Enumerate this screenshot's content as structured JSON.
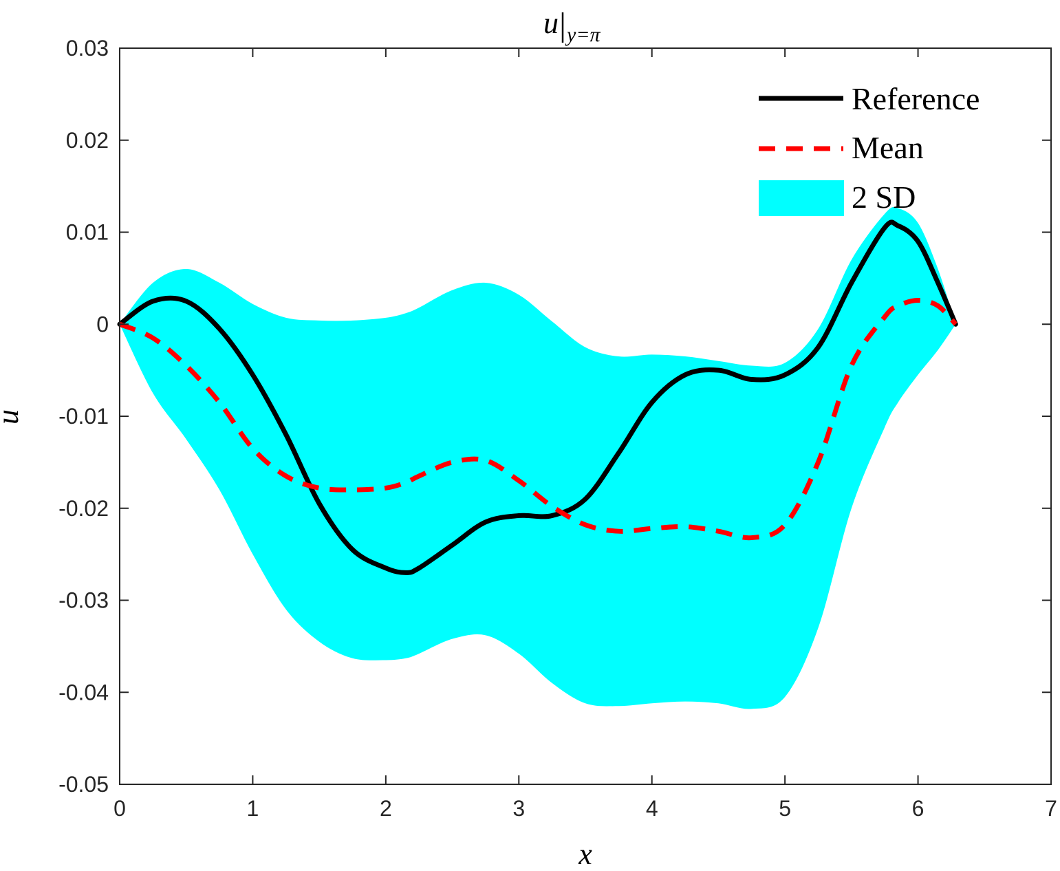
{
  "chart_data": {
    "type": "line",
    "title": "u|y=π",
    "title_main": "u",
    "title_sub": "y=π",
    "xlabel": "x",
    "ylabel": "u",
    "xlim": [
      0,
      7
    ],
    "ylim": [
      -0.05,
      0.03
    ],
    "x_ticks": [
      0,
      1,
      2,
      3,
      4,
      5,
      6,
      7
    ],
    "x_tick_labels": [
      "0",
      "1",
      "2",
      "3",
      "4",
      "5",
      "6",
      "7"
    ],
    "y_ticks": [
      0.03,
      0.02,
      0.01,
      0,
      -0.01,
      -0.02,
      -0.03,
      -0.04,
      -0.05
    ],
    "y_tick_labels": [
      "0.03",
      "0.02",
      "0.01",
      "0",
      "-0.01",
      "-0.02",
      "-0.03",
      "-0.04",
      "-0.05"
    ],
    "grid": false,
    "legend_position": "top-right",
    "x": [
      0,
      0.25,
      0.5,
      0.75,
      1.0,
      1.25,
      1.5,
      1.75,
      2.0,
      2.15,
      2.25,
      2.5,
      2.75,
      3.0,
      3.25,
      3.5,
      3.75,
      4.0,
      4.25,
      4.5,
      4.75,
      5.0,
      5.25,
      5.5,
      5.75,
      5.85,
      6.0,
      6.15,
      6.283
    ],
    "series": [
      {
        "name": "Reference",
        "style": "solid",
        "color": "#000000",
        "values": [
          0,
          0.0025,
          0.0025,
          -0.0005,
          -0.0055,
          -0.012,
          -0.0195,
          -0.0245,
          -0.0265,
          -0.027,
          -0.0265,
          -0.024,
          -0.0215,
          -0.0208,
          -0.0208,
          -0.019,
          -0.014,
          -0.0085,
          -0.0055,
          -0.005,
          -0.006,
          -0.0055,
          -0.0025,
          0.0045,
          0.0105,
          0.0107,
          0.009,
          0.0045,
          0
        ]
      },
      {
        "name": "Mean",
        "style": "dashed",
        "color": "#ff0000",
        "values": [
          0,
          -0.0015,
          -0.0045,
          -0.0085,
          -0.0135,
          -0.0165,
          -0.0178,
          -0.018,
          -0.0178,
          -0.0172,
          -0.0165,
          -0.015,
          -0.0148,
          -0.017,
          -0.0198,
          -0.0218,
          -0.0225,
          -0.0222,
          -0.022,
          -0.0225,
          -0.0232,
          -0.0218,
          -0.015,
          -0.0045,
          0.0008,
          0.002,
          0.0026,
          0.002,
          0
        ]
      }
    ],
    "band": {
      "name": "2 SD",
      "color": "#00ffff",
      "upper": [
        0,
        0.0045,
        0.006,
        0.0045,
        0.0022,
        0.0007,
        0.0004,
        0.0004,
        0.0007,
        0.0012,
        0.0018,
        0.0037,
        0.0045,
        0.0032,
        0.0003,
        -0.0025,
        -0.0035,
        -0.0033,
        -0.0035,
        -0.004,
        -0.0045,
        -0.0042,
        -0.0005,
        0.007,
        0.012,
        0.0126,
        0.011,
        0.006,
        0
      ],
      "lower": [
        0,
        -0.0075,
        -0.0125,
        -0.018,
        -0.025,
        -0.031,
        -0.0345,
        -0.0363,
        -0.0365,
        -0.0363,
        -0.0358,
        -0.0342,
        -0.0338,
        -0.0358,
        -0.039,
        -0.0412,
        -0.0415,
        -0.0412,
        -0.041,
        -0.0412,
        -0.0418,
        -0.0405,
        -0.033,
        -0.02,
        -0.0112,
        -0.0085,
        -0.0055,
        -0.0028,
        0
      ]
    }
  }
}
